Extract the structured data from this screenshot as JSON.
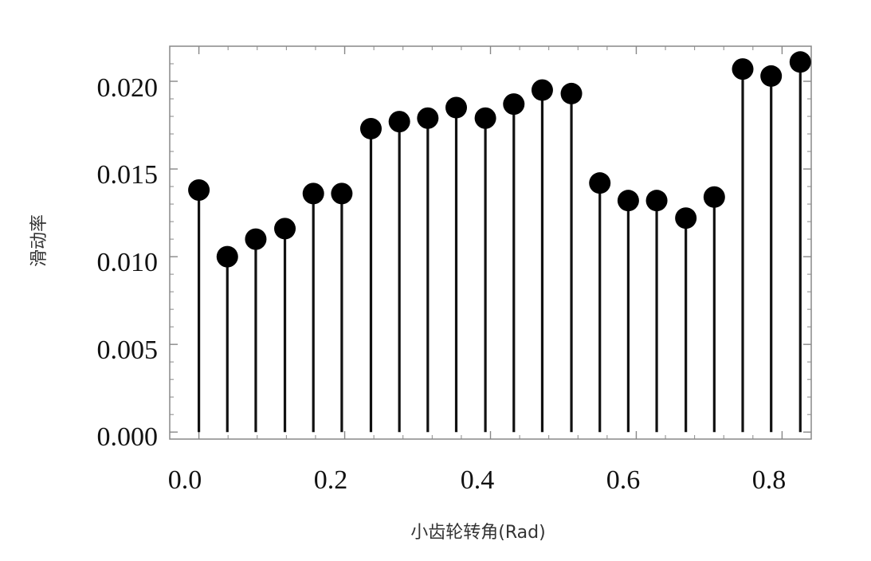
{
  "chart_data": {
    "type": "stem",
    "xlabel": "小齿轮转角(Rad)",
    "ylabel": "滑动率",
    "xlim": [
      -0.04,
      0.84
    ],
    "ylim": [
      -0.0004,
      0.022
    ],
    "x_ticks": [
      "0.0",
      "0.2",
      "0.4",
      "0.6",
      "0.8"
    ],
    "x_tick_values": [
      0.0,
      0.2,
      0.4,
      0.6,
      0.8
    ],
    "y_ticks": [
      "0.000",
      "0.005",
      "0.010",
      "0.015",
      "0.020"
    ],
    "y_tick_values": [
      0.0,
      0.005,
      0.01,
      0.015,
      0.02
    ],
    "grid": false,
    "series": [
      {
        "x": [
          0.0,
          0.039,
          0.078,
          0.118,
          0.157,
          0.196,
          0.236,
          0.275,
          0.314,
          0.353,
          0.393,
          0.432,
          0.471,
          0.511,
          0.55,
          0.589,
          0.628,
          0.668,
          0.707,
          0.746,
          0.785,
          0.825
        ],
        "values": [
          0.0138,
          0.01,
          0.011,
          0.0116,
          0.0136,
          0.0136,
          0.0173,
          0.0177,
          0.0179,
          0.0185,
          0.0179,
          0.0187,
          0.0195,
          0.0193,
          0.0142,
          0.0132,
          0.0132,
          0.0122,
          0.0134,
          0.0207,
          0.0203,
          0.0211
        ]
      }
    ],
    "colors": {
      "stem": "#111111",
      "marker": "#000000",
      "frame": "#888888"
    }
  }
}
